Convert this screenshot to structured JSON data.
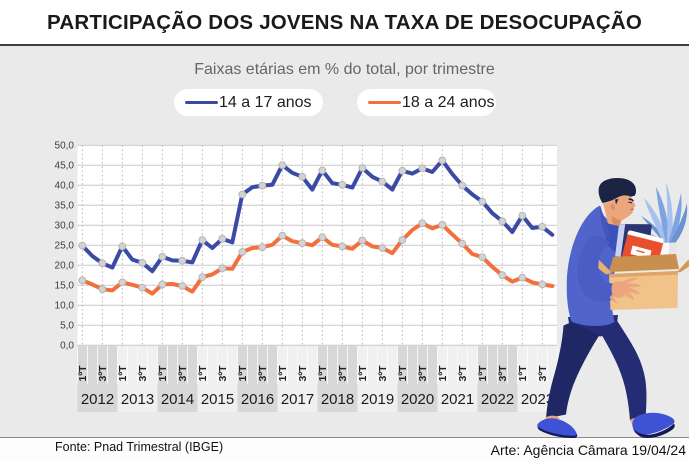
{
  "header": {
    "title": "PARTICIPAÇÃO DOS JOVENS NA TAXA DE DESOCUPAÇÃO"
  },
  "subtitle": "Faixas etárias em % do total, por trimestre",
  "legend": [
    {
      "label": "14 a 17 anos",
      "color": "#3a4aa5"
    },
    {
      "label": "18 a 24 anos",
      "color": "#f2703e"
    }
  ],
  "footer": {
    "source": "Fonte: Pnad Trimestral (IBGE)",
    "credit": "Arte: Agência Câmara 19/04/24"
  },
  "chart_data": {
    "type": "line",
    "title": "PARTICIPAÇÃO DOS JOVENS NA TAXA DE DESOCUPAÇÃO",
    "subtitle": "Faixas etárias em % do total, por trimestre",
    "unit": "%",
    "x_period": "trimestre",
    "years": [
      2012,
      2013,
      2014,
      2015,
      2016,
      2017,
      2018,
      2019,
      2020,
      2021,
      2022,
      2023
    ],
    "quarter_tick_labels": [
      "1ºT",
      "3ºT"
    ],
    "y_ticks": [
      0,
      5,
      10,
      15,
      20,
      25,
      30,
      35,
      40,
      45,
      50
    ],
    "ylim": [
      0,
      50
    ],
    "grid": {
      "horizontal": true,
      "vertical_dashed_every_2_quarters": true
    },
    "legend_position": "top",
    "marker_every": 2,
    "series": [
      {
        "name": "14 a 17 anos",
        "color": "#3a4aa5",
        "values": [
          24.9,
          22.3,
          20.5,
          19.4,
          24.7,
          21.4,
          20.6,
          18.5,
          22.1,
          21.2,
          21.1,
          20.7,
          26.3,
          24.3,
          26.6,
          25.7,
          37.7,
          39.5,
          39.9,
          40.1,
          45.0,
          43.1,
          42.1,
          38.9,
          43.7,
          40.5,
          40.1,
          39.4,
          44.3,
          42.1,
          40.9,
          38.9,
          43.6,
          42.9,
          44.2,
          43.3,
          46.2,
          42.8,
          39.9,
          37.7,
          35.9,
          33.0,
          31.0,
          28.3,
          32.4,
          29.3,
          29.6,
          27.6
        ]
      },
      {
        "name": "18 a 24 anos",
        "color": "#f2703e",
        "values": [
          16.2,
          15.2,
          14.0,
          13.7,
          15.7,
          15.1,
          14.4,
          12.9,
          15.2,
          15.3,
          14.8,
          13.4,
          17.0,
          17.7,
          19.2,
          19.1,
          23.3,
          24.3,
          24.5,
          25.1,
          27.4,
          26.0,
          25.5,
          25.0,
          27.0,
          25.1,
          24.7,
          24.1,
          26.2,
          24.7,
          24.3,
          23.0,
          26.3,
          28.8,
          30.5,
          29.2,
          30.1,
          27.7,
          25.4,
          22.8,
          22.0,
          19.6,
          17.5,
          15.9,
          16.9,
          15.7,
          15.2,
          14.8
        ]
      }
    ]
  }
}
